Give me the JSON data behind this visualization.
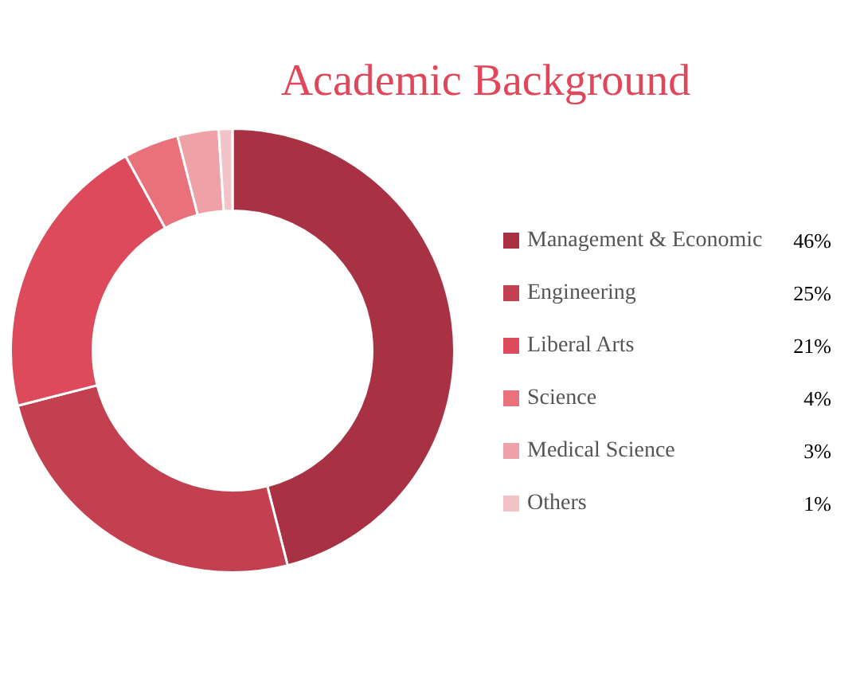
{
  "chart_data": {
    "type": "donut",
    "title": "Academic Background",
    "categories": [
      "Management & Economic",
      "Engineering",
      "Liberal Arts",
      "Science",
      "Medical Science",
      "Others"
    ],
    "values": [
      46,
      25,
      21,
      4,
      3,
      1
    ],
    "colors": [
      "#a83244",
      "#c2404f",
      "#dc4a5c",
      "#e8717c",
      "#eea2a8",
      "#f2c4c8"
    ],
    "value_labels": [
      "46%",
      "25%",
      "21%",
      "4%",
      "3%",
      "1%"
    ],
    "legend": "right"
  }
}
